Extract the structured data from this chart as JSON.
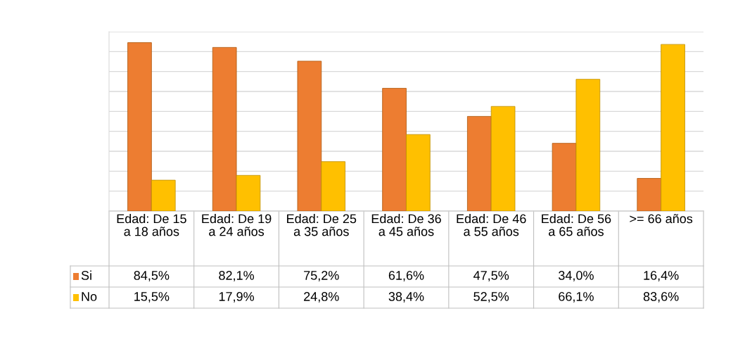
{
  "chart_data": {
    "type": "bar",
    "categories": [
      "Edad: De 15 a 18 años",
      "Edad: De 19 a 24 años",
      "Edad: De 25 a 35 años",
      "Edad: De 36 a 45 años",
      "Edad: De 46 a 55 años",
      "Edad: De 56 a 65 años",
      ">= 66 años"
    ],
    "series": [
      {
        "name": "Si",
        "color": "#ed7d31",
        "values": [
          84.5,
          82.1,
          75.2,
          61.6,
          47.5,
          34.0,
          16.4
        ],
        "value_labels": [
          "84,5%",
          "82,1%",
          "75,2%",
          "61,6%",
          "47,5%",
          "34,0%",
          "16,4%"
        ]
      },
      {
        "name": "No",
        "color": "#ffc000",
        "values": [
          15.5,
          17.9,
          24.8,
          38.4,
          52.5,
          66.1,
          83.6
        ],
        "value_labels": [
          "15,5%",
          "17,9%",
          "24,8%",
          "38,4%",
          "52,5%",
          "66,1%",
          "83,6%"
        ]
      }
    ],
    "ylim": [
      0,
      90
    ],
    "yticks": [
      {
        "value": 0,
        "label": null
      },
      {
        "value": 10,
        "label": null
      },
      {
        "value": 20,
        "label": null
      },
      {
        "value": 30,
        "label": null
      },
      {
        "value": 40,
        "label": null
      },
      {
        "value": 50,
        "label": null
      },
      {
        "value": 60,
        "label": null
      },
      {
        "value": 70,
        "label": null
      },
      {
        "value": 80,
        "label": null
      },
      {
        "value": 90,
        "label": null
      }
    ],
    "grid": "y",
    "legend": "bottom left"
  }
}
